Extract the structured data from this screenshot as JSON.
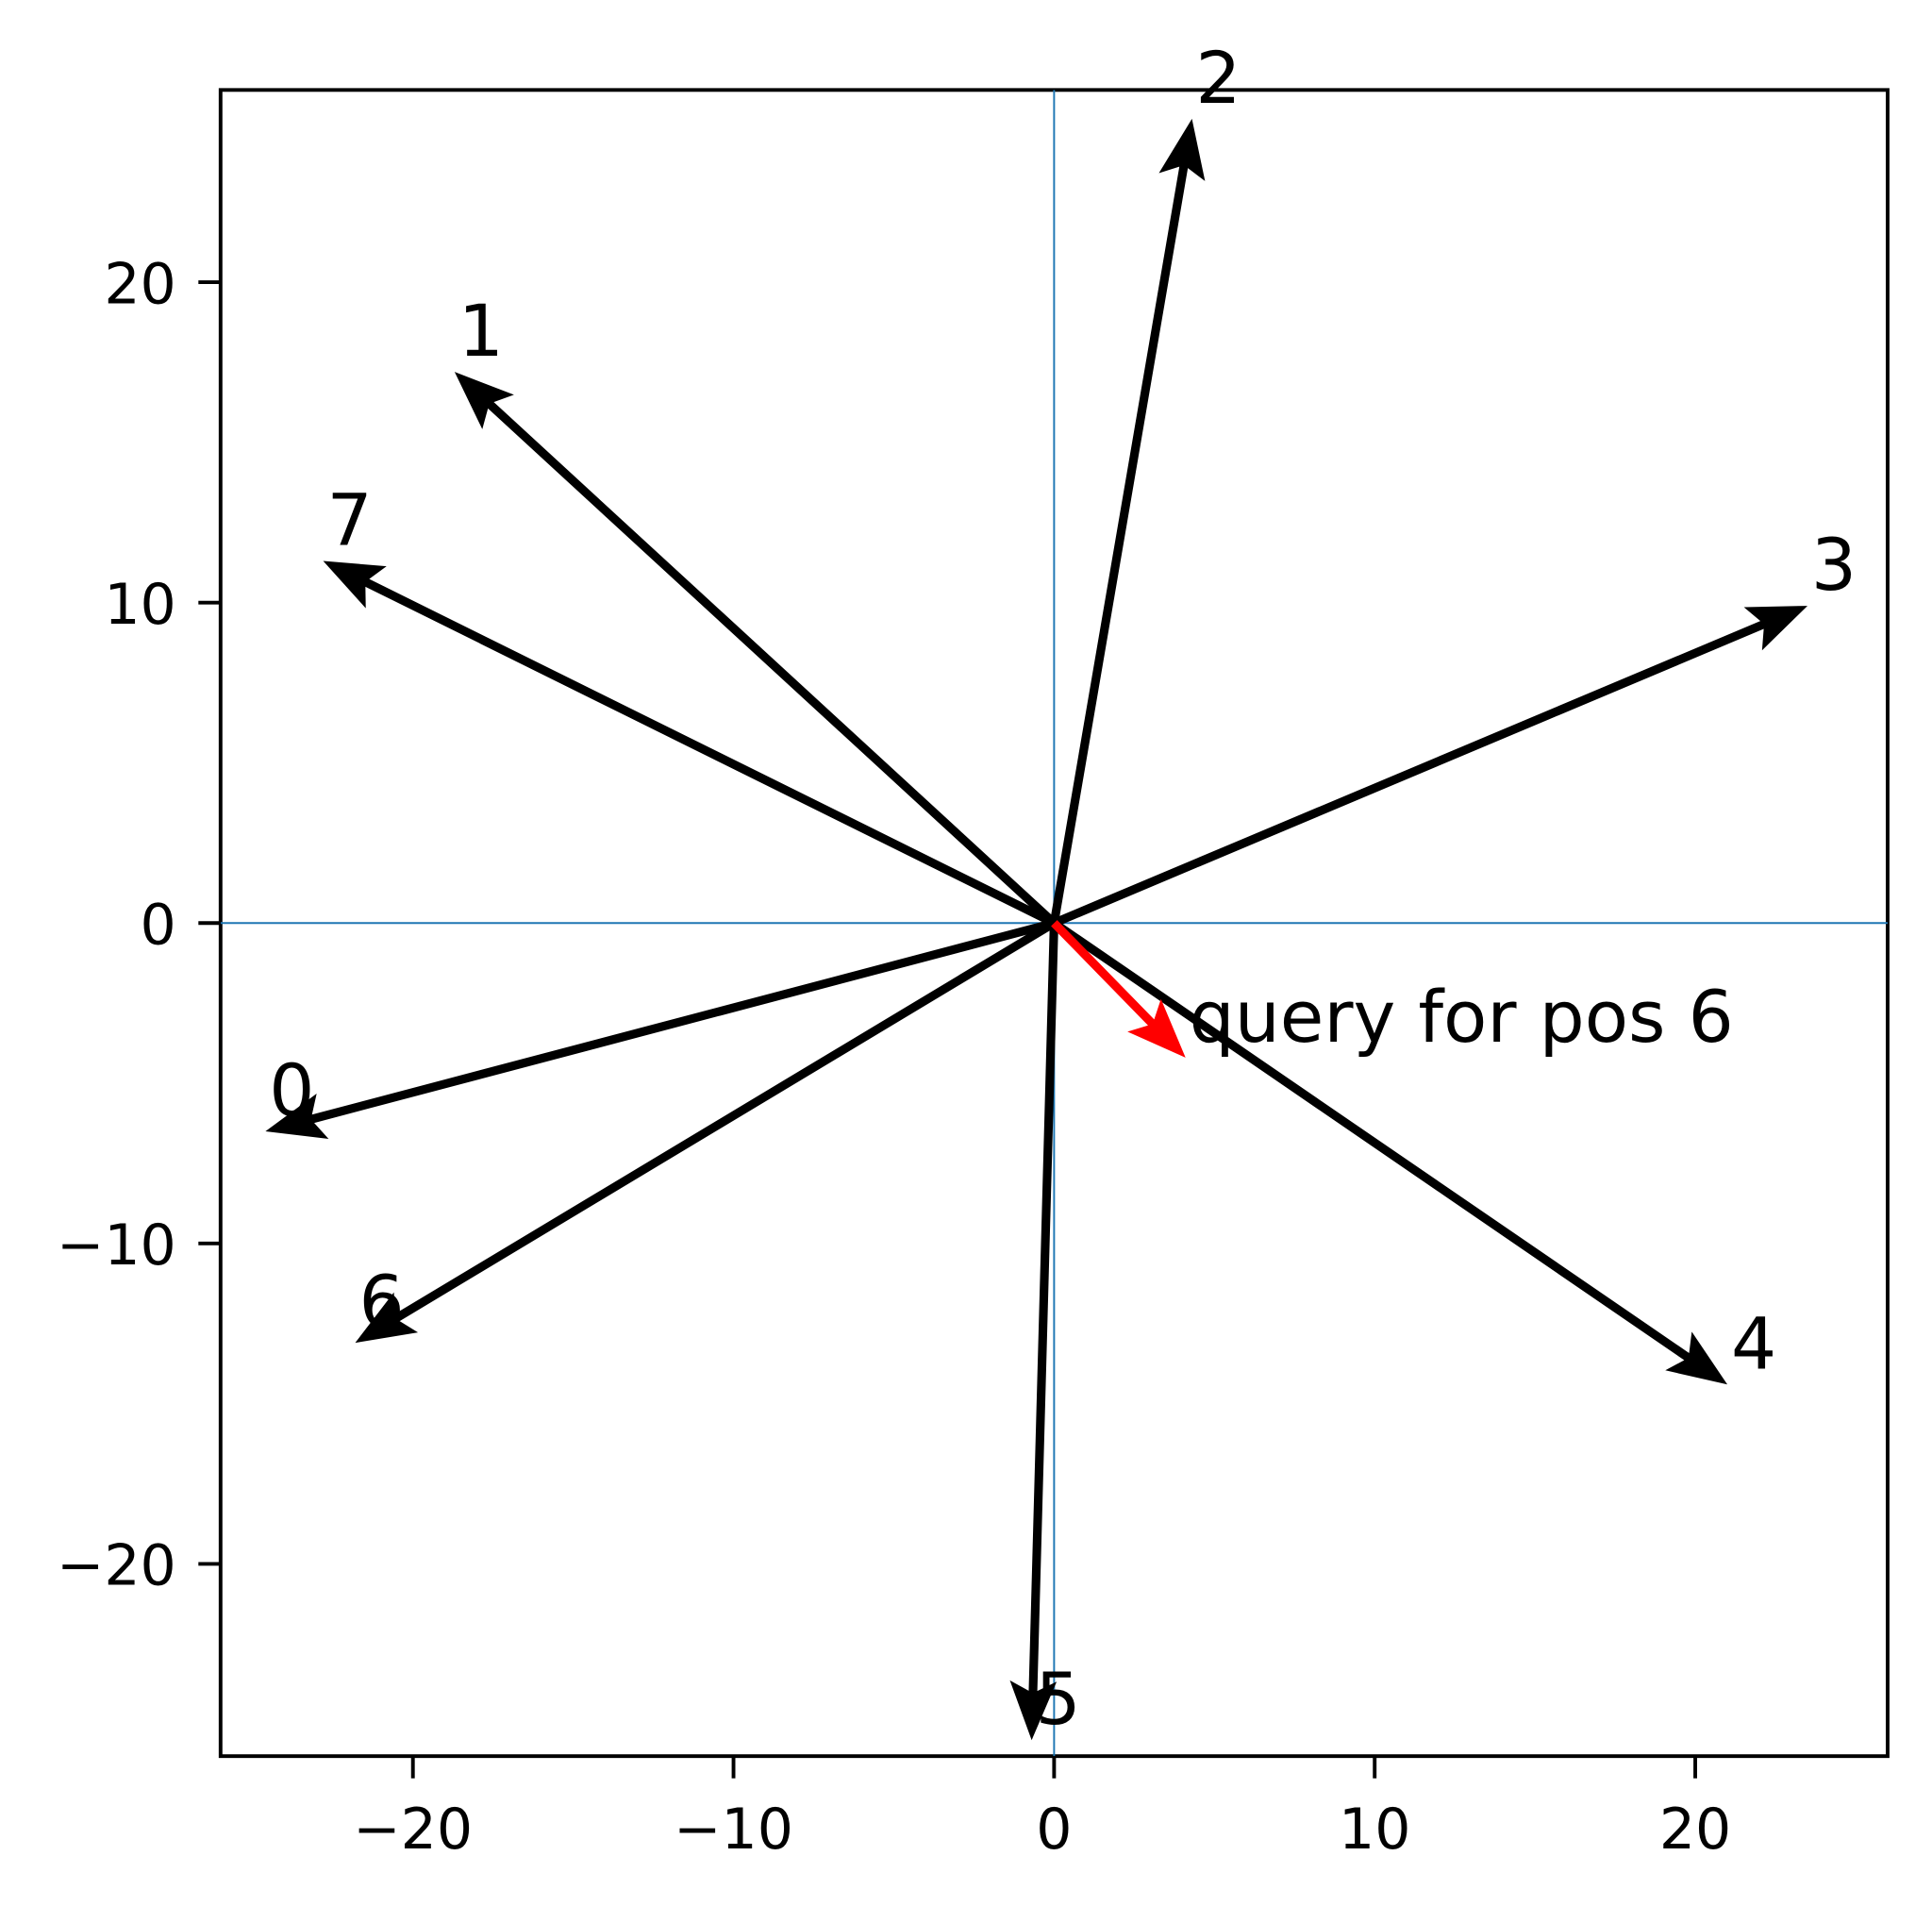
{
  "chart_data": {
    "type": "quiver",
    "xlim": [
      -26,
      26
    ],
    "ylim": [
      -26,
      26
    ],
    "xticks": [
      {
        "value": -20,
        "label": "−20"
      },
      {
        "value": -10,
        "label": "−10"
      },
      0,
      10,
      20
    ],
    "yticks": [
      {
        "value": -20,
        "label": "−20"
      },
      {
        "value": -10,
        "label": "−10"
      },
      0,
      10,
      20
    ],
    "hline": 0,
    "vline": 0,
    "line_color": "#1f77b4",
    "vectors": [
      {
        "label": "0",
        "u": -24.6,
        "v": -6.5,
        "color": "#000000"
      },
      {
        "label": "1",
        "u": -18.7,
        "v": 17.2,
        "color": "#000000"
      },
      {
        "label": "2",
        "u": 4.3,
        "v": 25.1,
        "color": "#000000"
      },
      {
        "label": "3",
        "u": 23.5,
        "v": 9.9,
        "color": "#000000"
      },
      {
        "label": "4",
        "u": 21.0,
        "v": -14.4,
        "color": "#000000"
      },
      {
        "label": "5",
        "u": -0.7,
        "v": -25.5,
        "color": "#000000"
      },
      {
        "label": "6",
        "u": -21.8,
        "v": -13.1,
        "color": "#000000"
      },
      {
        "label": "7",
        "u": -22.8,
        "v": 11.3,
        "color": "#000000"
      },
      {
        "label": "query for pos 6",
        "u": 4.1,
        "v": -4.2,
        "color": "#ff0000"
      }
    ]
  }
}
